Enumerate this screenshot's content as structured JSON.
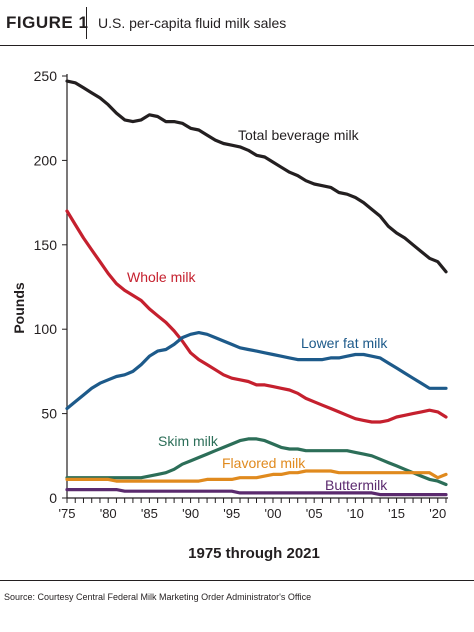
{
  "figure": {
    "label": "FIGURE 1",
    "title": "U.S. per-capita fluid milk sales",
    "source": "Source: Courtesy Central Federal Milk Marketing Order Administrator's Office"
  },
  "chart_data": {
    "type": "line",
    "xlabel": "1975 through 2021",
    "ylabel": "Pounds",
    "xlim": [
      1975,
      2021
    ],
    "ylim": [
      0,
      250
    ],
    "yticks": [
      0,
      50,
      100,
      150,
      200,
      250
    ],
    "xticks": [
      1975,
      1980,
      1985,
      1990,
      1995,
      2000,
      2005,
      2010,
      2015,
      2020
    ],
    "xtick_labels": [
      "'75",
      "'80",
      "'85",
      "'90",
      "'95",
      "'00",
      "'05",
      "'10",
      "'15",
      "'20"
    ],
    "grid": false,
    "legend": "inline labels",
    "x": [
      1975,
      1976,
      1977,
      1978,
      1979,
      1980,
      1981,
      1982,
      1983,
      1984,
      1985,
      1986,
      1987,
      1988,
      1989,
      1990,
      1991,
      1992,
      1993,
      1994,
      1995,
      1996,
      1997,
      1998,
      1999,
      2000,
      2001,
      2002,
      2003,
      2004,
      2005,
      2006,
      2007,
      2008,
      2009,
      2010,
      2011,
      2012,
      2013,
      2014,
      2015,
      2016,
      2017,
      2018,
      2019,
      2020,
      2021
    ],
    "series": [
      {
        "name": "Total beverage milk",
        "color": "#231f20",
        "values": [
          247,
          246,
          243,
          240,
          237,
          233,
          228,
          224,
          223,
          224,
          227,
          226,
          223,
          223,
          222,
          219,
          218,
          215,
          212,
          210,
          209,
          208,
          206,
          203,
          202,
          199,
          196,
          193,
          191,
          188,
          186,
          185,
          184,
          181,
          180,
          178,
          175,
          171,
          167,
          161,
          157,
          154,
          150,
          146,
          142,
          140,
          134
        ]
      },
      {
        "name": "Whole milk",
        "color": "#c5202e",
        "values": [
          170,
          162,
          154,
          147,
          140,
          133,
          127,
          123,
          120,
          117,
          112,
          108,
          104,
          99,
          93,
          86,
          82,
          79,
          76,
          73,
          71,
          70,
          69,
          67,
          67,
          66,
          65,
          64,
          62,
          59,
          57,
          55,
          53,
          51,
          49,
          47,
          46,
          45,
          45,
          46,
          48,
          49,
          50,
          51,
          52,
          51,
          48
        ]
      },
      {
        "name": "Lower fat milk",
        "color": "#1d5a8a",
        "values": [
          53,
          57,
          61,
          65,
          68,
          70,
          72,
          73,
          75,
          79,
          84,
          87,
          88,
          91,
          95,
          97,
          98,
          97,
          95,
          93,
          91,
          89,
          88,
          87,
          86,
          85,
          84,
          83,
          82,
          82,
          82,
          82,
          83,
          83,
          84,
          85,
          85,
          84,
          83,
          80,
          77,
          74,
          71,
          68,
          65,
          65,
          65
        ]
      },
      {
        "name": "Skim milk",
        "color": "#2c6e58",
        "values": [
          12,
          12,
          12,
          12,
          12,
          12,
          12,
          12,
          12,
          12,
          13,
          14,
          15,
          17,
          20,
          22,
          24,
          26,
          28,
          30,
          32,
          34,
          35,
          35,
          34,
          32,
          30,
          29,
          29,
          28,
          28,
          28,
          28,
          28,
          28,
          27,
          26,
          25,
          23,
          21,
          19,
          17,
          15,
          13,
          11,
          10,
          8
        ]
      },
      {
        "name": "Flavored milk",
        "color": "#e08a1e",
        "values": [
          11,
          11,
          11,
          11,
          11,
          11,
          10,
          10,
          10,
          10,
          10,
          10,
          10,
          10,
          10,
          10,
          10,
          11,
          11,
          11,
          11,
          12,
          12,
          12,
          13,
          14,
          14,
          15,
          15,
          16,
          16,
          16,
          16,
          15,
          15,
          15,
          15,
          15,
          15,
          15,
          15,
          15,
          15,
          15,
          15,
          12,
          14
        ]
      },
      {
        "name": "Buttermilk",
        "color": "#5b2a6e",
        "values": [
          5,
          5,
          5,
          5,
          5,
          5,
          5,
          4,
          4,
          4,
          4,
          4,
          4,
          4,
          4,
          4,
          4,
          4,
          4,
          4,
          4,
          3,
          3,
          3,
          3,
          3,
          3,
          3,
          3,
          3,
          3,
          3,
          3,
          3,
          3,
          3,
          3,
          3,
          2,
          2,
          2,
          2,
          2,
          2,
          2,
          2,
          2
        ]
      }
    ]
  }
}
